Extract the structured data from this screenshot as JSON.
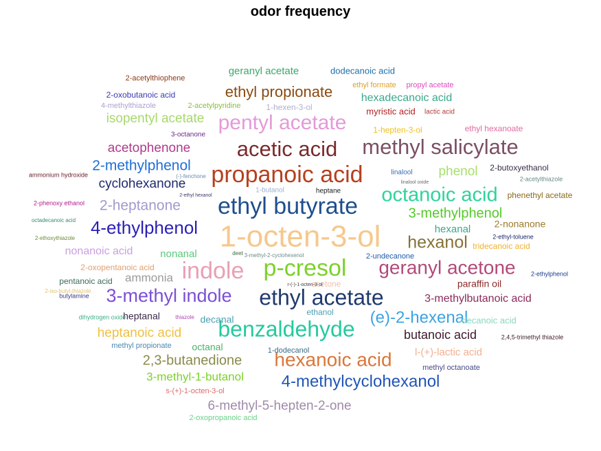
{
  "chart_data": {
    "type": "wordcloud",
    "title": "odor frequency",
    "words": [
      {
        "text": "1-octen-3-ol",
        "weight": 44,
        "color": "#f6c88d"
      },
      {
        "text": "ethyl butyrate",
        "weight": 34,
        "color": "#1f4e8c"
      },
      {
        "text": "propanoic acid",
        "weight": 34,
        "color": "#b5401f"
      },
      {
        "text": "indole",
        "weight": 34,
        "color": "#e8a0b4"
      },
      {
        "text": "p-cresol",
        "weight": 34,
        "color": "#7cd12a"
      },
      {
        "text": "ethyl acetate",
        "weight": 32,
        "color": "#1f3a6e"
      },
      {
        "text": "benzaldehyde",
        "weight": 32,
        "color": "#26c9a0"
      },
      {
        "text": "acetic acid",
        "weight": 31,
        "color": "#7a2a2a"
      },
      {
        "text": "methyl salicylate",
        "weight": 31,
        "color": "#7a5064"
      },
      {
        "text": "pentyl acetate",
        "weight": 30,
        "color": "#e39ad8"
      },
      {
        "text": "octanoic acid",
        "weight": 29,
        "color": "#2ed39a"
      },
      {
        "text": "geranyl acetone",
        "weight": 28,
        "color": "#b04a7a"
      },
      {
        "text": "hexanoic acid",
        "weight": 28,
        "color": "#d9773a"
      },
      {
        "text": "3-methyl indole",
        "weight": 27,
        "color": "#7b4fd6"
      },
      {
        "text": "4-ethylphenol",
        "weight": 26,
        "color": "#2a1fb5"
      },
      {
        "text": "hexanol",
        "weight": 25,
        "color": "#857135"
      },
      {
        "text": "(e)-2-hexenal",
        "weight": 24,
        "color": "#3ba3e3"
      },
      {
        "text": "4-methylcyclohexanol",
        "weight": 24,
        "color": "#1f55b8"
      },
      {
        "text": "ethyl propionate",
        "weight": 22,
        "color": "#8c4a0e"
      },
      {
        "text": "2-methylphenol",
        "weight": 21,
        "color": "#1f6fd6"
      },
      {
        "text": "2-heptanone",
        "weight": 21,
        "color": "#a39acc"
      },
      {
        "text": "3-methylphenol",
        "weight": 20,
        "color": "#55c92a"
      },
      {
        "text": "2,3-butanedione",
        "weight": 20,
        "color": "#8a8a4a"
      },
      {
        "text": "6-methyl-5-hepten-2-one",
        "weight": 19,
        "color": "#a08aaa"
      },
      {
        "text": "acetophenone",
        "weight": 19,
        "color": "#b03a8c"
      },
      {
        "text": "cyclohexanone",
        "weight": 19,
        "color": "#1f2a6e"
      },
      {
        "text": "isopentyl acetate",
        "weight": 19,
        "color": "#a6d96a"
      },
      {
        "text": "phenol",
        "weight": 19,
        "color": "#a6e06a"
      },
      {
        "text": "heptanoic acid",
        "weight": 19,
        "color": "#f0c040"
      },
      {
        "text": "butanoic acid",
        "weight": 18,
        "color": "#3a1a2a"
      },
      {
        "text": "3-methyl-1-butanol",
        "weight": 17,
        "color": "#7cd12a"
      },
      {
        "text": "ammonia",
        "weight": 17,
        "color": "#9a9a9a"
      },
      {
        "text": "hexadecanoic acid",
        "weight": 16,
        "color": "#3aa88a"
      },
      {
        "text": "3-methylbutanoic acid",
        "weight": 16,
        "color": "#8a2a5a"
      },
      {
        "text": "nonanoic acid",
        "weight": 16,
        "color": "#c9a0e0"
      },
      {
        "text": "l-(+)-lactic acid",
        "weight": 15,
        "color": "#f2b090"
      },
      {
        "text": "geranyl acetate",
        "weight": 15,
        "color": "#3aa86a"
      },
      {
        "text": "hexanal",
        "weight": 15,
        "color": "#3aa88a"
      },
      {
        "text": "nonanal",
        "weight": 15,
        "color": "#5ac97a"
      },
      {
        "text": "heptanal",
        "weight": 14,
        "color": "#3a2a4a"
      },
      {
        "text": "2-nonanone",
        "weight": 14,
        "color": "#9a7a2a"
      },
      {
        "text": "paraffin oil",
        "weight": 14,
        "color": "#8a2a2a"
      },
      {
        "text": "decanal",
        "weight": 14,
        "color": "#4aa0b0"
      },
      {
        "text": "octanal",
        "weight": 14,
        "color": "#4ab06a"
      },
      {
        "text": "dodecanoic acid",
        "weight": 13,
        "color": "#1f6fa8"
      },
      {
        "text": "myristic acid",
        "weight": 13,
        "color": "#b01f1f"
      },
      {
        "text": "decanoic acid",
        "weight": 13,
        "color": "#8ad6c0"
      },
      {
        "text": "tridecanoic acid",
        "weight": 12,
        "color": "#f0b030"
      },
      {
        "text": "2-butoxyethanol",
        "weight": 12,
        "color": "#3a2a4a"
      },
      {
        "text": "phenethyl acetate",
        "weight": 12,
        "color": "#8a6a1a"
      },
      {
        "text": "ethyl hexanoate",
        "weight": 12,
        "color": "#e06aa0"
      },
      {
        "text": "1-hepten-3-ol",
        "weight": 12,
        "color": "#f0c020"
      },
      {
        "text": "2-oxobutanoic acid",
        "weight": 12,
        "color": "#3a3ab0"
      },
      {
        "text": "2-oxopentanoic acid",
        "weight": 12,
        "color": "#e0a070"
      },
      {
        "text": "pentanoic acid",
        "weight": 12,
        "color": "#3a6a5a"
      },
      {
        "text": "1-hexen-3-ol",
        "weight": 12,
        "color": "#b0b0d0"
      },
      {
        "text": "ethanol",
        "weight": 12,
        "color": "#4aa0b0"
      },
      {
        "text": "acetone",
        "weight": 12,
        "color": "#f0c0b0"
      },
      {
        "text": "methyl propionate",
        "weight": 11,
        "color": "#4a8ab0"
      },
      {
        "text": "methyl octanoate",
        "weight": 11,
        "color": "#4a4a8a"
      },
      {
        "text": "2-oxopropanoic acid",
        "weight": 11,
        "color": "#6ad08a"
      },
      {
        "text": "s-(+)-1-octen-3-ol",
        "weight": 11,
        "color": "#e06a6a"
      },
      {
        "text": "1-dodecanol",
        "weight": 11,
        "color": "#3a6a8a"
      },
      {
        "text": "2-undecanone",
        "weight": 11,
        "color": "#1f5ab0"
      },
      {
        "text": "2-acetylthiophene",
        "weight": 11,
        "color": "#8a3a1a"
      },
      {
        "text": "2-acetylpyridine",
        "weight": 11,
        "color": "#8ac03a"
      },
      {
        "text": "4-methylthiazole",
        "weight": 11,
        "color": "#b0a0d0"
      },
      {
        "text": "ethyl formate",
        "weight": 11,
        "color": "#e0a020"
      },
      {
        "text": "propyl acetate",
        "weight": 11,
        "color": "#e04ac0"
      },
      {
        "text": "lactic acid",
        "weight": 10,
        "color": "#b03a3a"
      },
      {
        "text": "3-octanone",
        "weight": 10,
        "color": "#6a2a8a"
      },
      {
        "text": "linalool",
        "weight": 10,
        "color": "#3a6ab0"
      },
      {
        "text": "1-butanol",
        "weight": 10,
        "color": "#9ab0d0"
      },
      {
        "text": "heptane",
        "weight": 10,
        "color": "#1a1a1a"
      },
      {
        "text": "ammonium hydroxide",
        "weight": 9,
        "color": "#6a1a2a"
      },
      {
        "text": "2-phenoxy ethanol",
        "weight": 9,
        "color": "#b01a8a"
      },
      {
        "text": "2-ethylphenol",
        "weight": 9,
        "color": "#1a3a8a"
      },
      {
        "text": "2-ethyl-toluene",
        "weight": 9,
        "color": "#1a2a6a"
      },
      {
        "text": "2,4,5-trimethyl thiazole",
        "weight": 9,
        "color": "#3a1a2a"
      },
      {
        "text": "2-acetylthiazole",
        "weight": 9,
        "color": "#6a8a8a"
      },
      {
        "text": "butylamine",
        "weight": 9,
        "color": "#3a3a8a"
      },
      {
        "text": "dihydrogen oxide",
        "weight": 9,
        "color": "#3ab08a"
      },
      {
        "text": "2-iso-butyl-thiazole",
        "weight": 8,
        "color": "#e0c070"
      },
      {
        "text": "2-ethoxythiazole",
        "weight": 8,
        "color": "#6a8a3a"
      },
      {
        "text": "octadecanoic acid",
        "weight": 8,
        "color": "#3a8a6a"
      },
      {
        "text": "thiazole",
        "weight": 8,
        "color": "#b04ab0"
      },
      {
        "text": "3-methyl-2-cyclohexenol",
        "weight": 8,
        "color": "#6a8a8a"
      },
      {
        "text": "deet",
        "weight": 8,
        "color": "#3a6a3a"
      },
      {
        "text": "(-)-fenchone",
        "weight": 8,
        "color": "#6a8ab0"
      },
      {
        "text": "linalool oxide",
        "weight": 7,
        "color": "#6a6a6a"
      },
      {
        "text": "2-ethyl hexanol",
        "weight": 7,
        "color": "#3a3a6a"
      },
      {
        "text": "r-(-)-1-octen-3-ol",
        "weight": 7,
        "color": "#3a3a3a"
      }
    ]
  }
}
